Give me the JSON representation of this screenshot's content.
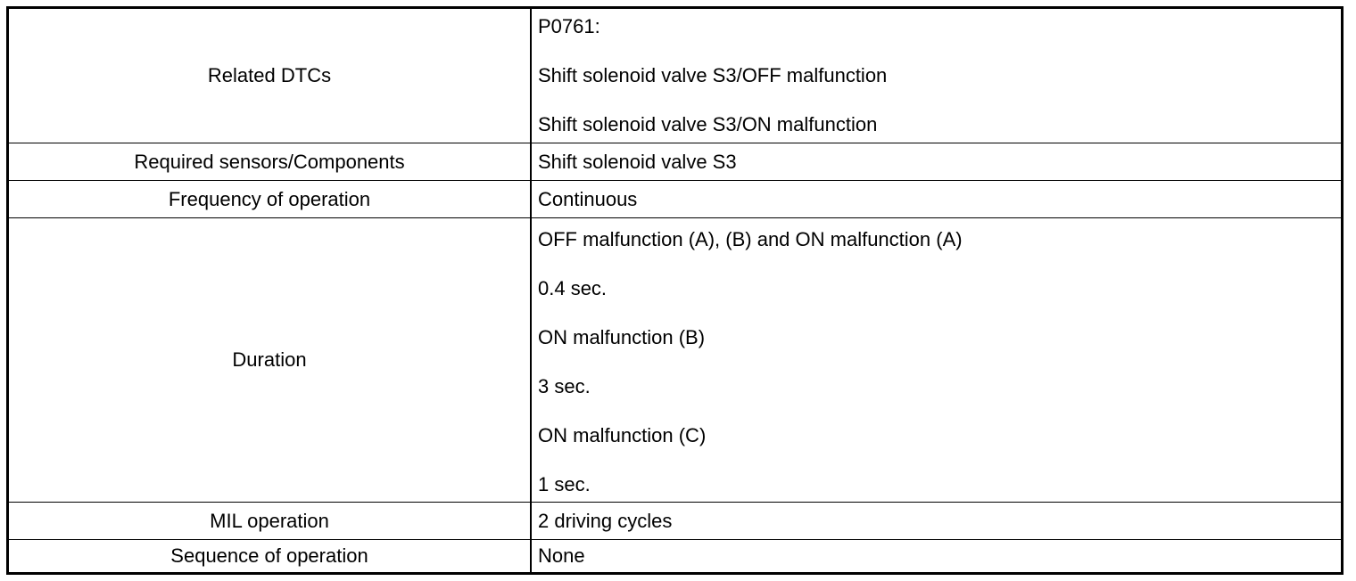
{
  "table": {
    "rows": [
      {
        "label": "Related DTCs",
        "lines": [
          "P0761:",
          "Shift solenoid valve S3/OFF malfunction",
          "Shift solenoid valve S3/ON malfunction"
        ]
      },
      {
        "label": "Required sensors/Components",
        "value": "Shift solenoid valve S3"
      },
      {
        "label": "Frequency of operation",
        "value": "Continuous"
      },
      {
        "label": "Duration",
        "lines": [
          "OFF malfunction (A), (B) and ON malfunction (A)",
          "0.4 sec.",
          "ON malfunction (B)",
          "3 sec.",
          "ON malfunction (C)",
          "1 sec."
        ]
      },
      {
        "label": "MIL operation",
        "value": "2 driving cycles"
      },
      {
        "label": "Sequence of operation",
        "value": "None"
      }
    ]
  }
}
